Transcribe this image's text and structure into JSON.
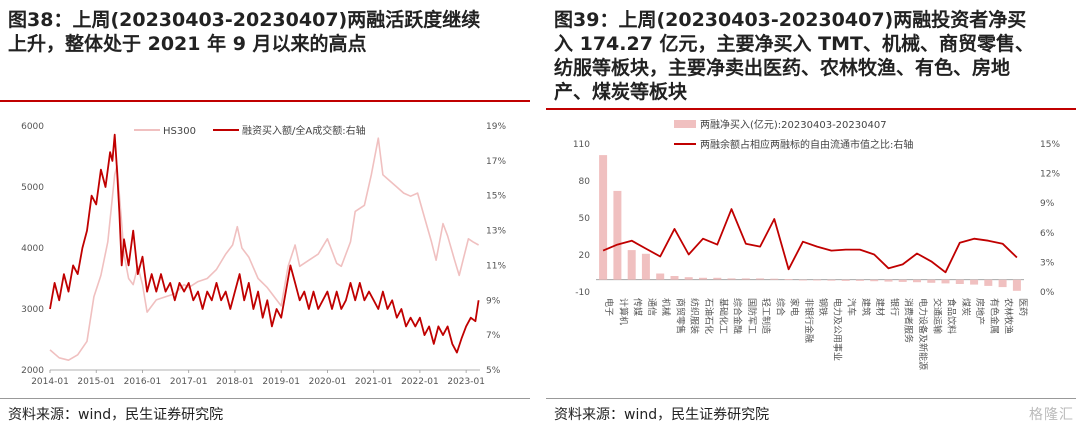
{
  "left": {
    "title_lines": [
      "图38：上周(20230403-20230407)两融活跃度继续",
      "上升，整体处于 2021 年 9 月以来的高点"
    ],
    "source": "资料来源：wind，民生证券研究院"
  },
  "right": {
    "title_lines": [
      "图39：上周(20230403-20230407)两融投资者净买",
      "入 174.27 亿元，主要净买入 TMT、机械、商贸零售、",
      "纺服等板块，主要净卖出医药、农林牧渔、有色、房地",
      "产、煤炭等板块"
    ],
    "source": "资料来源：wind，民生证券研究院",
    "watermark": "格隆汇"
  },
  "chart_data": [
    {
      "type": "line",
      "title": "",
      "x_ticks": [
        "2014-01",
        "2015-01",
        "2016-01",
        "2017-01",
        "2018-01",
        "2019-01",
        "2020-01",
        "2021-01",
        "2022-01",
        "2023-01"
      ],
      "y_left": {
        "label": "",
        "ylim": [
          2000,
          6000
        ],
        "ticks": [
          "2000",
          "3000",
          "4000",
          "5000",
          "6000"
        ]
      },
      "y_right": {
        "label": "",
        "ylim": [
          5,
          19
        ],
        "ticks": [
          "5%",
          "7%",
          "9%",
          "11%",
          "13%",
          "15%",
          "17%",
          "19%"
        ]
      },
      "legend": [
        "HS300",
        "融资买入额/全A成交额:右轴"
      ],
      "legend_position": "top",
      "series": [
        {
          "name": "HS300",
          "axis": "left",
          "color": "#f0c0c0",
          "points": [
            [
              2014.0,
              2330
            ],
            [
              2014.2,
              2200
            ],
            [
              2014.4,
              2160
            ],
            [
              2014.6,
              2250
            ],
            [
              2014.8,
              2470
            ],
            [
              2014.95,
              3200
            ],
            [
              2015.1,
              3550
            ],
            [
              2015.25,
              4100
            ],
            [
              2015.4,
              5200
            ],
            [
              2015.45,
              5350
            ],
            [
              2015.55,
              4400
            ],
            [
              2015.6,
              3900
            ],
            [
              2015.7,
              3500
            ],
            [
              2015.8,
              3400
            ],
            [
              2015.9,
              3700
            ],
            [
              2016.0,
              3400
            ],
            [
              2016.1,
              2950
            ],
            [
              2016.3,
              3150
            ],
            [
              2016.5,
              3200
            ],
            [
              2016.7,
              3250
            ],
            [
              2016.9,
              3400
            ],
            [
              2017.0,
              3350
            ],
            [
              2017.2,
              3450
            ],
            [
              2017.4,
              3500
            ],
            [
              2017.6,
              3650
            ],
            [
              2017.8,
              3900
            ],
            [
              2017.95,
              4050
            ],
            [
              2018.05,
              4350
            ],
            [
              2018.15,
              4000
            ],
            [
              2018.3,
              3850
            ],
            [
              2018.5,
              3500
            ],
            [
              2018.7,
              3350
            ],
            [
              2018.9,
              3150
            ],
            [
              2019.0,
              3050
            ],
            [
              2019.15,
              3700
            ],
            [
              2019.3,
              4050
            ],
            [
              2019.4,
              3700
            ],
            [
              2019.6,
              3800
            ],
            [
              2019.8,
              3900
            ],
            [
              2020.0,
              4150
            ],
            [
              2020.2,
              3750
            ],
            [
              2020.3,
              3700
            ],
            [
              2020.5,
              4100
            ],
            [
              2020.6,
              4600
            ],
            [
              2020.8,
              4700
            ],
            [
              2020.95,
              5200
            ],
            [
              2021.1,
              5800
            ],
            [
              2021.2,
              5200
            ],
            [
              2021.35,
              5100
            ],
            [
              2021.5,
              5000
            ],
            [
              2021.65,
              4900
            ],
            [
              2021.8,
              4850
            ],
            [
              2021.95,
              4900
            ],
            [
              2022.1,
              4500
            ],
            [
              2022.25,
              4100
            ],
            [
              2022.35,
              3800
            ],
            [
              2022.5,
              4400
            ],
            [
              2022.6,
              4200
            ],
            [
              2022.75,
              3800
            ],
            [
              2022.85,
              3550
            ],
            [
              2022.95,
              3850
            ],
            [
              2023.05,
              4150
            ],
            [
              2023.15,
              4100
            ],
            [
              2023.27,
              4050
            ]
          ]
        },
        {
          "name": "融资买入额/全A成交额:右轴",
          "axis": "right",
          "color": "#c00000",
          "points": [
            [
              2014.0,
              8.5
            ],
            [
              2014.1,
              10.0
            ],
            [
              2014.2,
              9.0
            ],
            [
              2014.3,
              10.5
            ],
            [
              2014.4,
              9.5
            ],
            [
              2014.5,
              11.0
            ],
            [
              2014.6,
              10.5
            ],
            [
              2014.7,
              12.0
            ],
            [
              2014.8,
              13.0
            ],
            [
              2014.9,
              15.0
            ],
            [
              2015.0,
              14.5
            ],
            [
              2015.1,
              16.5
            ],
            [
              2015.2,
              15.5
            ],
            [
              2015.3,
              17.5
            ],
            [
              2015.35,
              17.0
            ],
            [
              2015.4,
              18.5
            ],
            [
              2015.45,
              16.5
            ],
            [
              2015.5,
              14.0
            ],
            [
              2015.55,
              11.0
            ],
            [
              2015.6,
              12.5
            ],
            [
              2015.7,
              11.0
            ],
            [
              2015.8,
              13.0
            ],
            [
              2015.9,
              10.5
            ],
            [
              2016.0,
              11.5
            ],
            [
              2016.1,
              9.5
            ],
            [
              2016.2,
              10.5
            ],
            [
              2016.3,
              9.5
            ],
            [
              2016.4,
              10.5
            ],
            [
              2016.5,
              9.5
            ],
            [
              2016.6,
              10.0
            ],
            [
              2016.7,
              9.0
            ],
            [
              2016.8,
              10.0
            ],
            [
              2016.9,
              9.5
            ],
            [
              2017.0,
              10.0
            ],
            [
              2017.1,
              9.0
            ],
            [
              2017.2,
              9.5
            ],
            [
              2017.3,
              8.5
            ],
            [
              2017.4,
              9.5
            ],
            [
              2017.5,
              9.0
            ],
            [
              2017.6,
              10.0
            ],
            [
              2017.7,
              9.0
            ],
            [
              2017.8,
              9.5
            ],
            [
              2017.9,
              8.5
            ],
            [
              2018.0,
              9.5
            ],
            [
              2018.1,
              10.5
            ],
            [
              2018.2,
              9.0
            ],
            [
              2018.3,
              10.0
            ],
            [
              2018.4,
              8.5
            ],
            [
              2018.5,
              9.5
            ],
            [
              2018.6,
              8.0
            ],
            [
              2018.7,
              9.0
            ],
            [
              2018.8,
              7.5
            ],
            [
              2018.9,
              8.5
            ],
            [
              2019.0,
              8.0
            ],
            [
              2019.1,
              9.5
            ],
            [
              2019.2,
              11.0
            ],
            [
              2019.3,
              10.0
            ],
            [
              2019.4,
              9.0
            ],
            [
              2019.5,
              9.5
            ],
            [
              2019.6,
              8.5
            ],
            [
              2019.7,
              9.5
            ],
            [
              2019.8,
              8.5
            ],
            [
              2019.9,
              9.0
            ],
            [
              2020.0,
              9.5
            ],
            [
              2020.1,
              8.5
            ],
            [
              2020.2,
              9.5
            ],
            [
              2020.3,
              8.5
            ],
            [
              2020.4,
              9.0
            ],
            [
              2020.5,
              10.0
            ],
            [
              2020.6,
              9.0
            ],
            [
              2020.7,
              10.0
            ],
            [
              2020.8,
              9.0
            ],
            [
              2020.9,
              9.5
            ],
            [
              2021.0,
              9.0
            ],
            [
              2021.1,
              8.5
            ],
            [
              2021.2,
              9.5
            ],
            [
              2021.3,
              8.5
            ],
            [
              2021.4,
              9.0
            ],
            [
              2021.5,
              8.0
            ],
            [
              2021.6,
              8.5
            ],
            [
              2021.7,
              7.5
            ],
            [
              2021.8,
              8.0
            ],
            [
              2021.9,
              7.5
            ],
            [
              2022.0,
              8.0
            ],
            [
              2022.1,
              7.0
            ],
            [
              2022.2,
              7.5
            ],
            [
              2022.3,
              6.5
            ],
            [
              2022.4,
              7.5
            ],
            [
              2022.5,
              7.0
            ],
            [
              2022.6,
              7.5
            ],
            [
              2022.7,
              6.5
            ],
            [
              2022.8,
              6.0
            ],
            [
              2022.9,
              6.8
            ],
            [
              2023.0,
              7.5
            ],
            [
              2023.1,
              8.0
            ],
            [
              2023.2,
              7.8
            ],
            [
              2023.27,
              9.0
            ]
          ]
        }
      ]
    },
    {
      "type": "bar",
      "title": "",
      "categories": [
        "电子",
        "计算机",
        "传媒",
        "通信",
        "机械",
        "商贸零售",
        "纺织服装",
        "石油石化",
        "基础化工",
        "综合金融",
        "国防军工",
        "轻工制造",
        "综合",
        "家电",
        "非银行金融",
        "钢铁",
        "电力及公用事业",
        "汽车",
        "建筑",
        "建材",
        "银行",
        "消费者服务",
        "电力设备及新能源",
        "交通运输",
        "食品饮料",
        "煤炭",
        "房地产",
        "有色金属",
        "农林牧渔",
        "医药"
      ],
      "y_left": {
        "label": "",
        "ylim": [
          -10,
          110
        ],
        "ticks": [
          "-10",
          "20",
          "50",
          "80",
          "110"
        ]
      },
      "y_right": {
        "label": "",
        "ylim": [
          0,
          15
        ],
        "ticks": [
          "0%",
          "3%",
          "6%",
          "9%",
          "12%",
          "15%"
        ]
      },
      "legend": [
        "两融净买入(亿元):20230403-20230407",
        "两融余额占相应两融标的自由流通市值之比:右轴"
      ],
      "legend_position": "top",
      "series": [
        {
          "name": "两融净买入(亿元):20230403-20230407",
          "axis": "left",
          "color": "#f0c0c0",
          "values": [
            101,
            72,
            24,
            21,
            5,
            3,
            2,
            1.5,
            1.5,
            1,
            1,
            1,
            0.8,
            0.5,
            -0.5,
            -0.5,
            -0.8,
            -1,
            -1,
            -1.2,
            -1.5,
            -1.8,
            -2,
            -2.5,
            -3,
            -3.5,
            -4,
            -5,
            -6,
            -9
          ]
        },
        {
          "name": "两融余额占相应两融标的自由流通市值之比:右轴",
          "axis": "right",
          "color": "#c00000",
          "values": [
            4.2,
            4.8,
            5.2,
            4.4,
            3.6,
            6.4,
            3.8,
            5.4,
            4.8,
            8.4,
            4.9,
            4.6,
            7.4,
            2.3,
            5.1,
            4.6,
            4.2,
            4.3,
            4.3,
            3.8,
            2.4,
            2.8,
            3.9,
            3.1,
            2.0,
            5.0,
            5.4,
            5.2,
            4.9,
            3.5
          ]
        }
      ]
    }
  ]
}
